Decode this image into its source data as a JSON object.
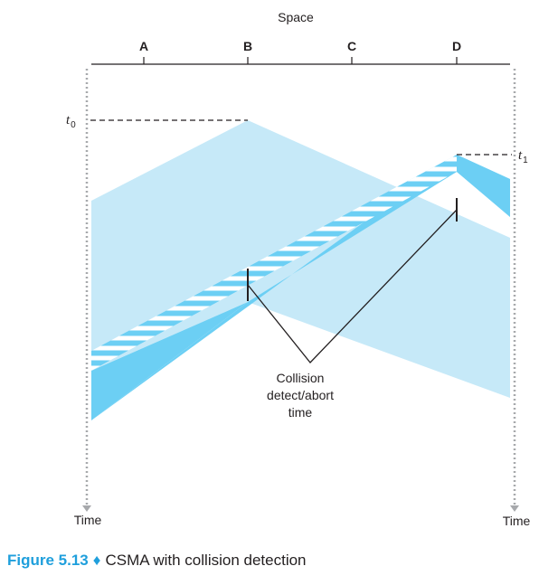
{
  "diagram": {
    "space_label": "Space",
    "nodes": [
      "A",
      "B",
      "C",
      "D"
    ],
    "t0": {
      "base": "t",
      "sub": "0"
    },
    "t1": {
      "base": "t",
      "sub": "1"
    },
    "annotation": [
      "Collision",
      "detect/abort",
      "time"
    ],
    "time_left": "Time",
    "time_right": "Time"
  },
  "colors": {
    "light_fill": "#c6e9f8",
    "dark_fill": "#6ccff4",
    "stripe": "#ffffff",
    "axis": "#231f20",
    "dotted": "#a7a9ac",
    "caption_accent": "#1f9fdc"
  },
  "caption": {
    "figure": "Figure 5.13",
    "separator": "♦",
    "text": "CSMA with collision detection"
  }
}
